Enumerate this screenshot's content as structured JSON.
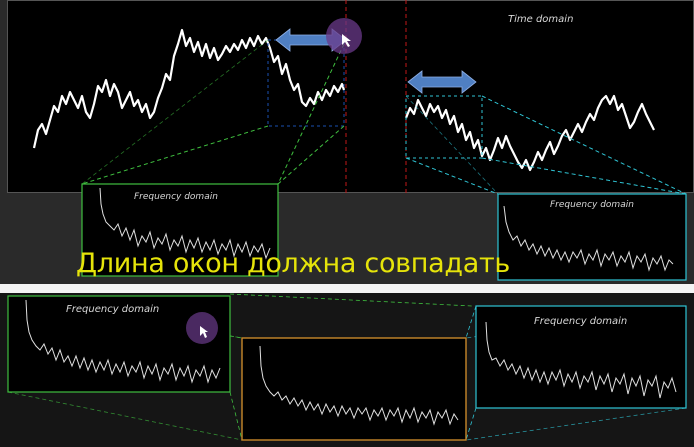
{
  "main_view": {
    "time_domain_label": "Time domain",
    "caption": "Длина окон должна совпадать"
  },
  "spectra": {
    "top_left_label": "Frequency domain",
    "top_right_label": "Frequency domain",
    "bottom_left_label": "Frequency domain",
    "bottom_right_label": "Frequency domain"
  },
  "colors": {
    "green_window": "#3fbf3f",
    "cyan_window": "#2fc4d4",
    "orange_window": "#c8882a",
    "red_marker": "#c01818",
    "arrow_blue": "#4f7fc2",
    "cursor_halo": "#6a3a8a",
    "caption_yellow": "#e6e40a"
  }
}
